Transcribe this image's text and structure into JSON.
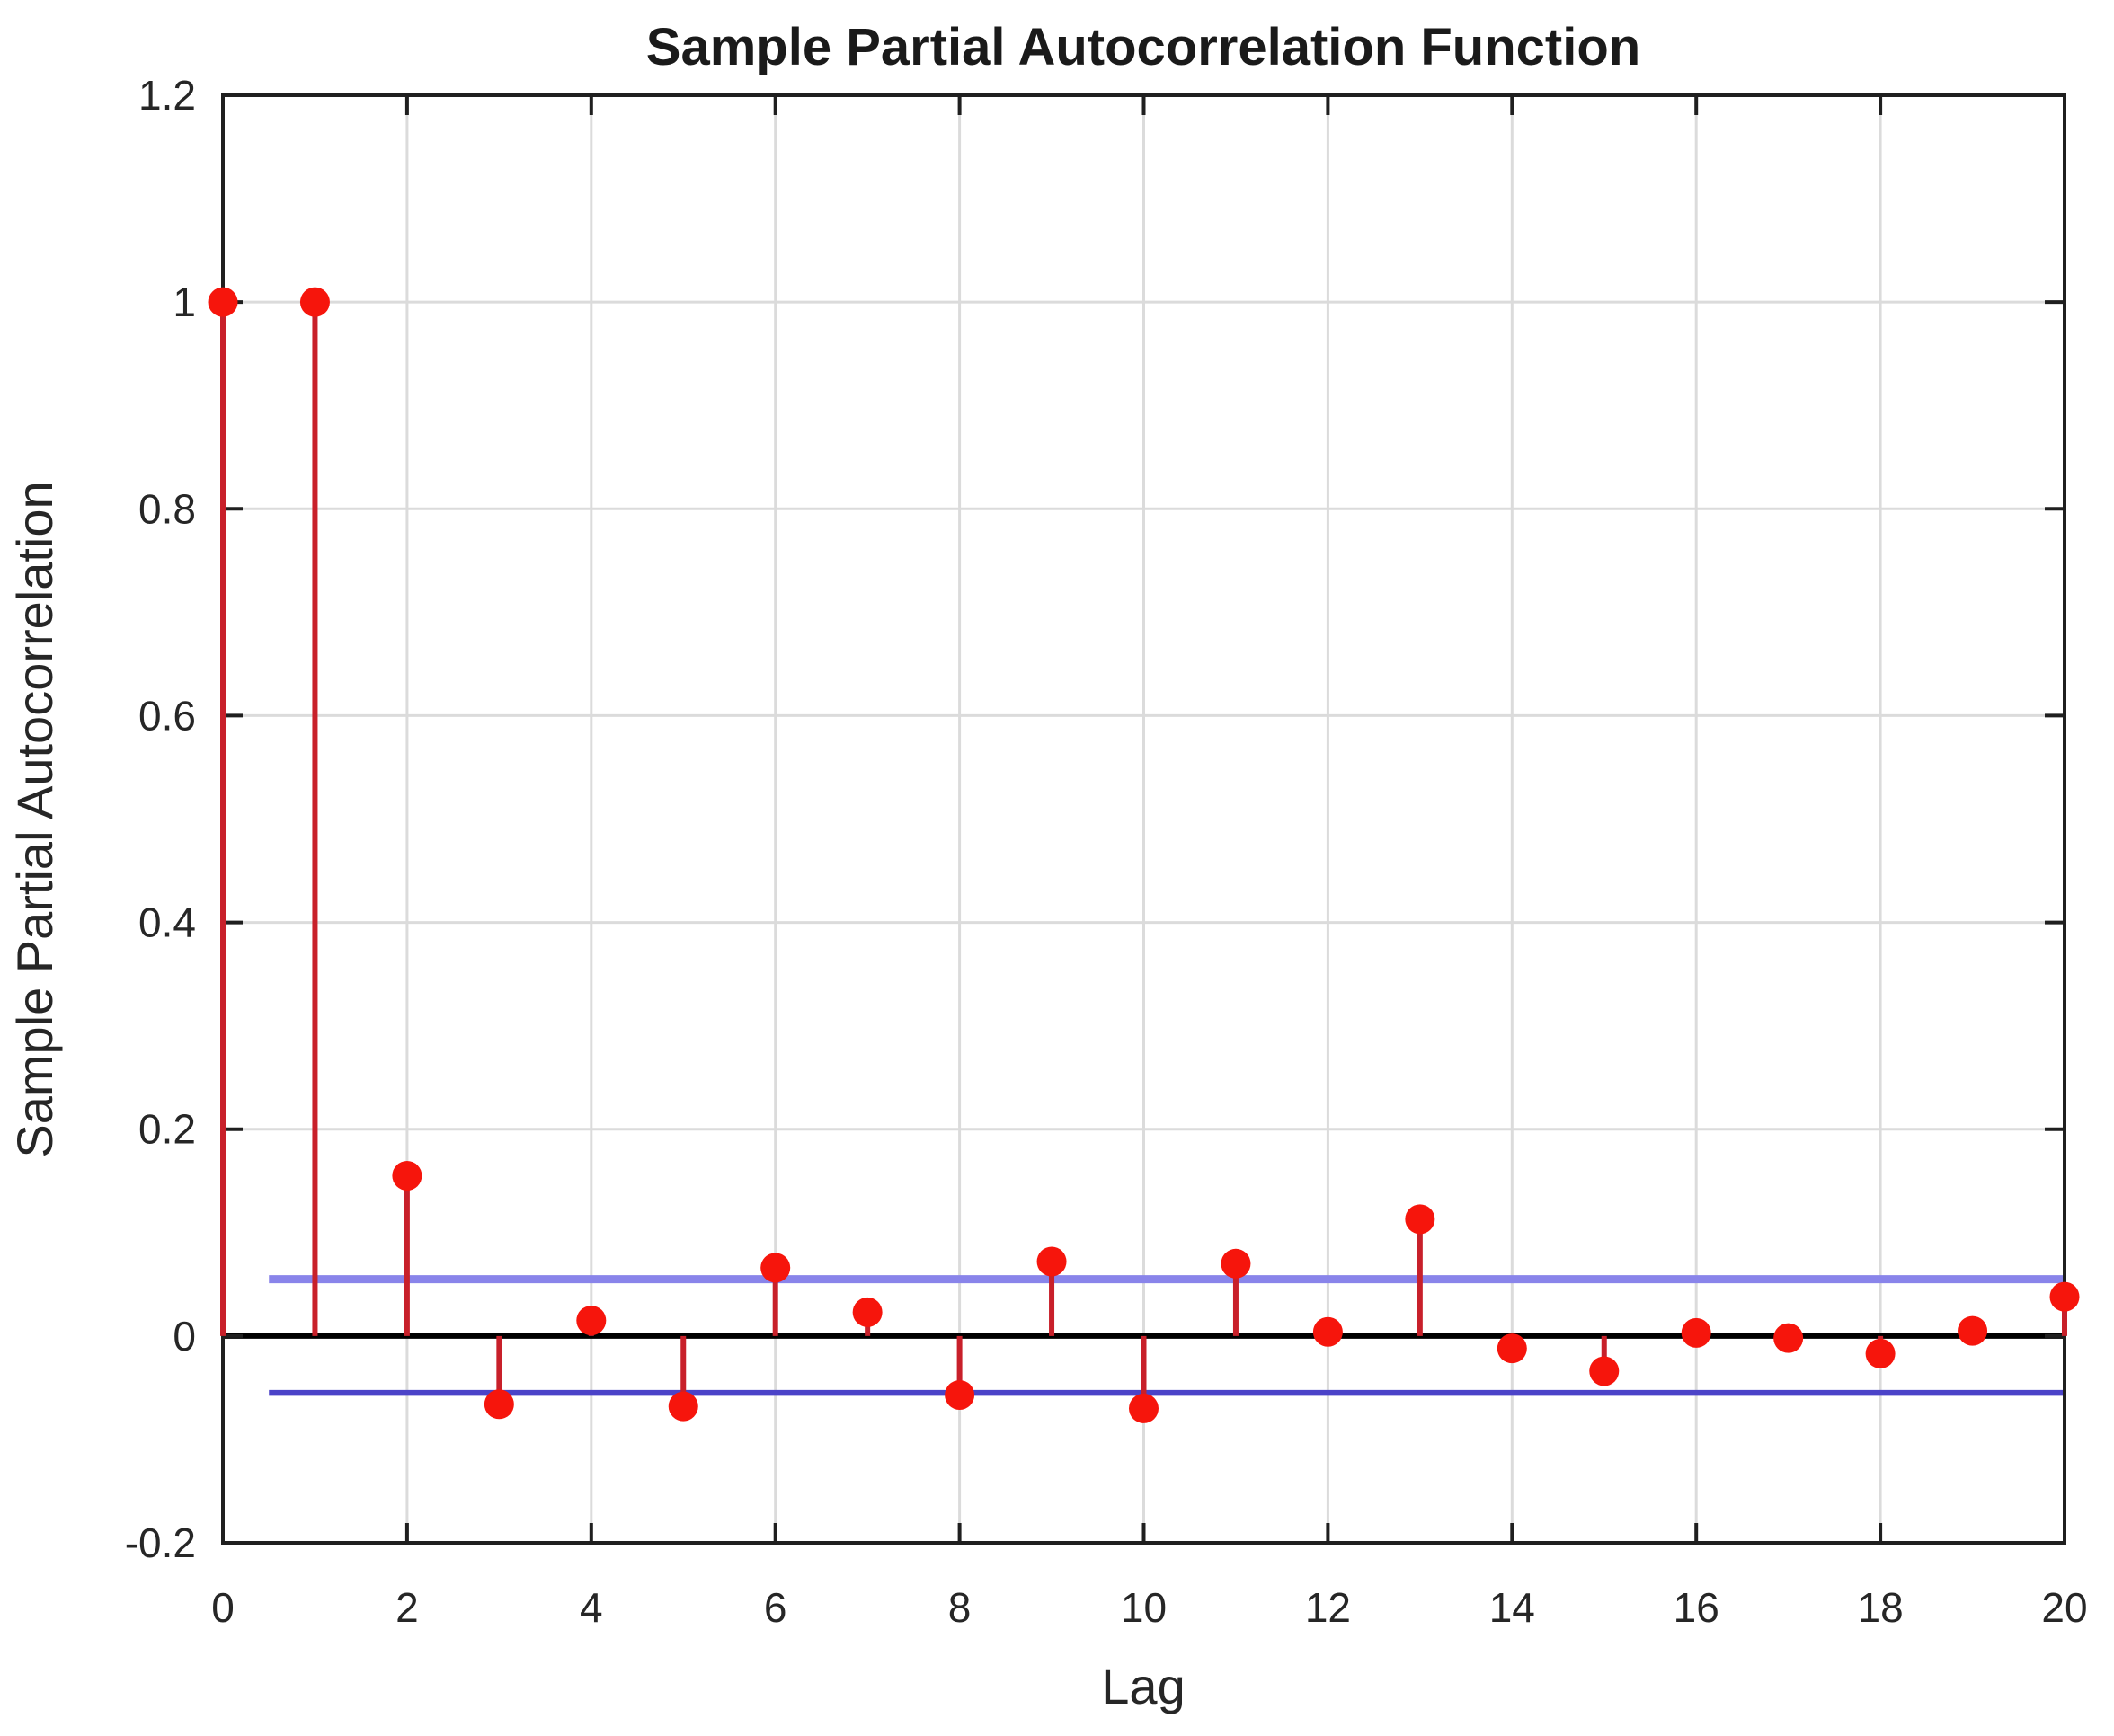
{
  "chart_data": {
    "type": "stem",
    "title": "Sample Partial Autocorrelation Function",
    "xlabel": "Lag",
    "ylabel": "Sample Partial Autocorrelation",
    "x": [
      0,
      1,
      2,
      3,
      4,
      5,
      6,
      7,
      8,
      9,
      10,
      11,
      12,
      13,
      14,
      15,
      16,
      17,
      18,
      19,
      20
    ],
    "values": [
      1.0,
      1.0,
      0.155,
      -0.066,
      0.015,
      -0.068,
      0.066,
      0.023,
      -0.057,
      0.072,
      -0.07,
      0.07,
      0.004,
      0.113,
      -0.012,
      -0.034,
      0.003,
      -0.002,
      -0.017,
      0.005,
      0.038
    ],
    "confidence_bounds": {
      "upper": 0.055,
      "lower": -0.055,
      "x_start": 0.5,
      "x_end": 20
    },
    "xlim": [
      0,
      20
    ],
    "ylim": [
      -0.2,
      1.2
    ],
    "xticks": [
      0,
      2,
      4,
      6,
      8,
      10,
      12,
      14,
      16,
      18,
      20
    ],
    "xtick_labels": [
      "0",
      "2",
      "4",
      "6",
      "8",
      "10",
      "12",
      "14",
      "16",
      "18",
      "20"
    ],
    "yticks": [
      -0.2,
      0,
      0.2,
      0.4,
      0.6,
      0.8,
      1,
      1.2
    ],
    "ytick_labels": [
      "-0.2",
      "0",
      "0.2",
      "0.4",
      "0.6",
      "0.8",
      "1",
      "1.2"
    ],
    "grid": true,
    "legend": null,
    "colors": {
      "stem": "#C8202A",
      "marker": "#F6150C",
      "zero_line": "#000000",
      "conf_upper": "#8984EA",
      "conf_lower": "#4B43C8",
      "grid": "#DBDBDB",
      "axis": "#1F1F1F"
    }
  }
}
